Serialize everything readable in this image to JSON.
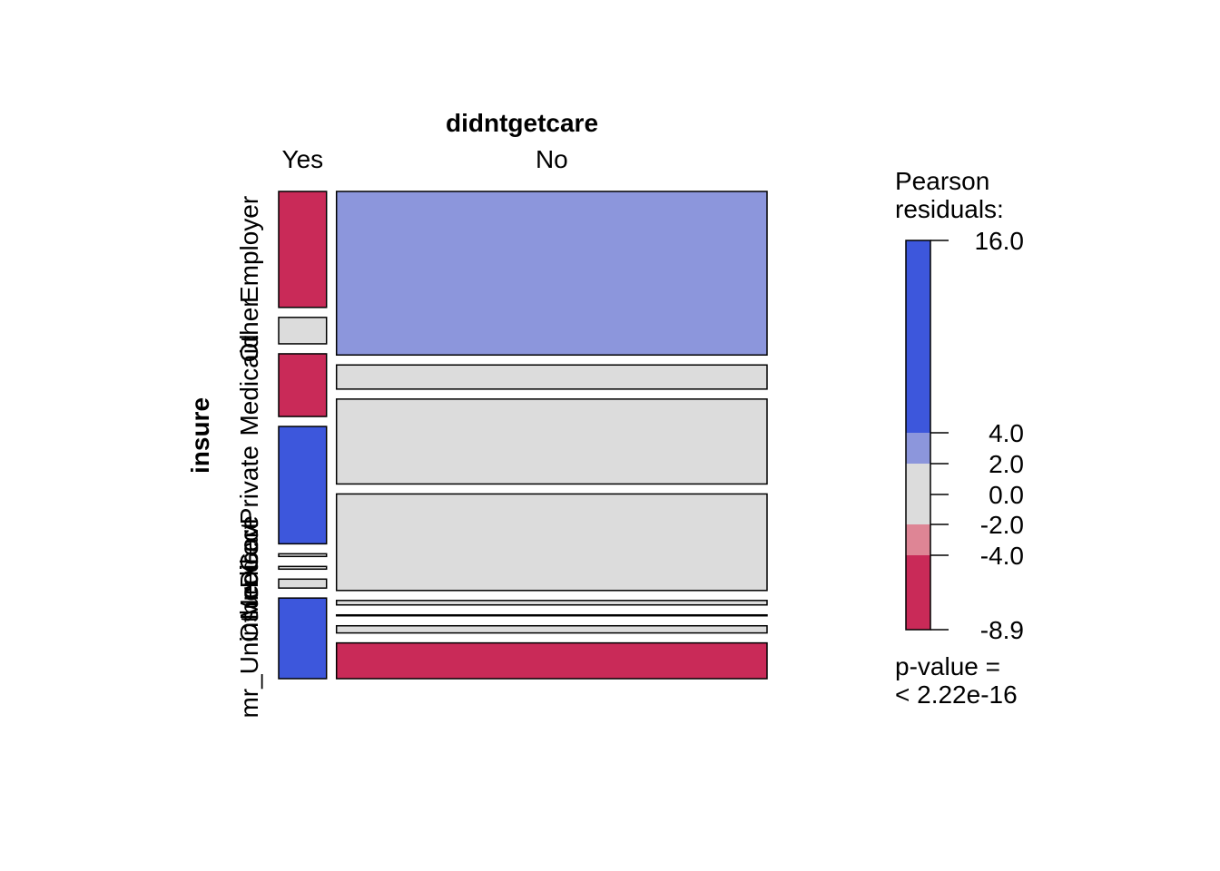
{
  "chart_data": {
    "type": "mosaic",
    "title": "",
    "col_variable": "didntgetcare",
    "row_variable": "insure",
    "columns": [
      "Yes",
      "No"
    ],
    "col_widths": [
      0.1,
      0.9
    ],
    "rows": [
      {
        "label": "Employer",
        "yes_height": 0.259,
        "no_height": 0.366,
        "yes_residual": -8.9,
        "no_residual": 3.0
      },
      {
        "label": "Other",
        "yes_height": 0.059,
        "no_height": 0.054,
        "yes_residual": 0.5,
        "no_residual": -0.2
      },
      {
        "label": "Medicaid",
        "yes_height": 0.14,
        "no_height": 0.19,
        "yes_residual": -5.0,
        "no_residual": 1.0
      },
      {
        "label": "Private",
        "yes_height": 0.262,
        "no_height": 0.216,
        "yes_residual": 5.5,
        "no_residual": -1.5
      },
      {
        "label": "Direct",
        "yes_height": 0.006,
        "no_height": 0.01,
        "yes_residual": -0.5,
        "no_residual": 0.2
      },
      {
        "label": "Medicare",
        "yes_height": 0.006,
        "no_height": 0.002,
        "yes_residual": -0.5,
        "no_residual": 0.2
      },
      {
        "label": "Other Gov",
        "yes_height": 0.02,
        "no_height": 0.016,
        "yes_residual": 0.3,
        "no_residual": -0.1
      },
      {
        "label": "mr_Uninsured",
        "yes_height": 0.18,
        "no_height": 0.08,
        "yes_residual": 16.0,
        "no_residual": -5.0
      }
    ],
    "legend": {
      "title_line1": "Pearson",
      "title_line2": "residuals:",
      "breaks": [
        -8.9,
        -4.0,
        -2.0,
        0.0,
        2.0,
        4.0,
        16.0
      ],
      "tick_labels": [
        "-8.9",
        "-4.0",
        "-2.0",
        "0.0",
        "2.0",
        "4.0",
        "16.0"
      ],
      "segments": [
        {
          "from": -8.9,
          "to": -4.0,
          "color": "#C92A58"
        },
        {
          "from": -4.0,
          "to": -2.0,
          "color": "#DE8595"
        },
        {
          "from": -2.0,
          "to": 2.0,
          "color": "#DCDCDC"
        },
        {
          "from": 2.0,
          "to": 4.0,
          "color": "#8C96DC"
        },
        {
          "from": 4.0,
          "to": 16.0,
          "color": "#3D57DC"
        }
      ],
      "pvalue_line1": "p-value =",
      "pvalue_line2": "< 2.22e-16"
    },
    "colors": {
      "strong_negative": "#C92A58",
      "weak_negative": "#DE8595",
      "neutral": "#DCDCDC",
      "weak_positive": "#8C96DC",
      "strong_positive": "#3D57DC"
    },
    "row_labels_overlap": "EmployerOtherMedicaidPrivateDirectMedicareOtherGovmr_Uninsured"
  }
}
